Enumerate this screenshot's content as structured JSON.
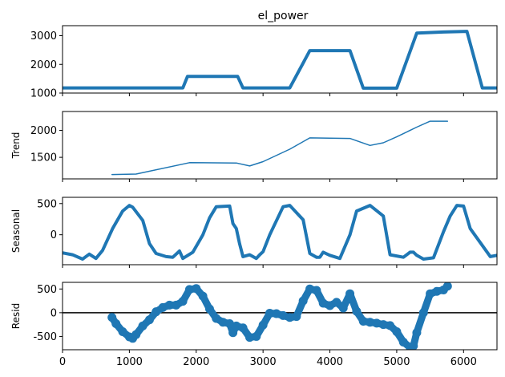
{
  "chart_data": [
    {
      "type": "line",
      "title": "el_power",
      "ylabel": "",
      "xlim": [
        0,
        6500
      ],
      "ylim": [
        1000,
        3350
      ],
      "yticks": [
        1000,
        2000,
        3000
      ],
      "series": [
        {
          "color": "#1f77b4",
          "style": "thick-line",
          "x": [
            0,
            1800,
            1870,
            2620,
            2700,
            3400,
            3700,
            4300,
            4500,
            5000,
            5300,
            5700,
            6050,
            6280,
            6500
          ],
          "y": [
            1180,
            1180,
            1580,
            1580,
            1180,
            1180,
            2480,
            2480,
            1170,
            1170,
            3090,
            3130,
            3150,
            1180,
            1180
          ]
        }
      ]
    },
    {
      "type": "line",
      "title": "",
      "ylabel": "Trend",
      "xlim": [
        0,
        6500
      ],
      "ylim": [
        1100,
        2350
      ],
      "yticks": [
        1500,
        2000
      ],
      "series": [
        {
          "color": "#1f77b4",
          "style": "thin-line",
          "x": [
            740,
            1100,
            1900,
            2600,
            2800,
            3000,
            3400,
            3700,
            4300,
            4600,
            4800,
            5000,
            5300,
            5500,
            5760
          ],
          "y": [
            1180,
            1190,
            1400,
            1395,
            1340,
            1420,
            1650,
            1860,
            1850,
            1720,
            1770,
            1880,
            2060,
            2170,
            2170
          ]
        }
      ]
    },
    {
      "type": "line",
      "title": "",
      "ylabel": "Seasonal",
      "xlim": [
        0,
        6500
      ],
      "ylim": [
        -480,
        600
      ],
      "yticks": [
        0,
        500
      ],
      "series": [
        {
          "color": "#1f77b4",
          "style": "thick-line",
          "x": [
            0,
            150,
            300,
            400,
            500,
            600,
            750,
            900,
            1000,
            1050,
            1200,
            1300,
            1400,
            1550,
            1650,
            1750,
            1800,
            1950,
            2100,
            2200,
            2300,
            2500,
            2550,
            2600,
            2650,
            2700,
            2800,
            2900,
            2950,
            3000,
            3100,
            3300,
            3400,
            3600,
            3700,
            3800,
            3850,
            3900,
            4000,
            4150,
            4300,
            4400,
            4600,
            4800,
            4900,
            5100,
            5200,
            5250,
            5300,
            5400,
            5550,
            5700,
            5800,
            5900,
            6000,
            6100,
            6400,
            6500
          ],
          "y": [
            -290,
            -320,
            -390,
            -310,
            -380,
            -250,
            100,
            380,
            470,
            440,
            230,
            -140,
            -300,
            -350,
            -360,
            -260,
            -380,
            -280,
            0,
            270,
            450,
            460,
            180,
            100,
            -150,
            -350,
            -320,
            -380,
            -320,
            -270,
            0,
            450,
            470,
            240,
            -300,
            -360,
            -360,
            -280,
            -330,
            -380,
            0,
            380,
            470,
            300,
            -320,
            -360,
            -280,
            -280,
            -330,
            -390,
            -370,
            50,
            300,
            470,
            460,
            100,
            -350,
            -330
          ]
        }
      ]
    },
    {
      "type": "scatter",
      "title": "",
      "ylabel": "Resid",
      "xlim": [
        0,
        6500
      ],
      "ylim": [
        -780,
        640
      ],
      "yticks": [
        -500,
        0,
        500
      ],
      "zero_line": true,
      "series": [
        {
          "color": "#1f77b4",
          "style": "dense-markers",
          "x": [
            740,
            800,
            900,
            1000,
            1050,
            1100,
            1200,
            1300,
            1400,
            1500,
            1600,
            1700,
            1800,
            1900,
            2000,
            2100,
            2200,
            2300,
            2400,
            2500,
            2550,
            2600,
            2700,
            2800,
            2900,
            3000,
            3100,
            3200,
            3300,
            3400,
            3500,
            3600,
            3700,
            3800,
            3900,
            4000,
            4100,
            4200,
            4300,
            4400,
            4500,
            4600,
            4700,
            4800,
            4900,
            5000,
            5100,
            5200,
            5250,
            5300,
            5400,
            5500,
            5600,
            5700,
            5760
          ],
          "y": [
            -100,
            -230,
            -400,
            -510,
            -540,
            -460,
            -280,
            -150,
            20,
            110,
            160,
            160,
            240,
            490,
            510,
            350,
            80,
            -120,
            -200,
            -230,
            -420,
            -280,
            -320,
            -520,
            -500,
            -260,
            -10,
            -20,
            -60,
            -100,
            -80,
            250,
            500,
            470,
            200,
            150,
            220,
            100,
            400,
            30,
            -180,
            -200,
            -220,
            -250,
            -270,
            -400,
            -620,
            -730,
            -700,
            -420,
            0,
            400,
            450,
            480,
            560
          ]
        }
      ]
    }
  ],
  "xticks": [
    0,
    1000,
    2000,
    3000,
    4000,
    5000,
    6000
  ]
}
